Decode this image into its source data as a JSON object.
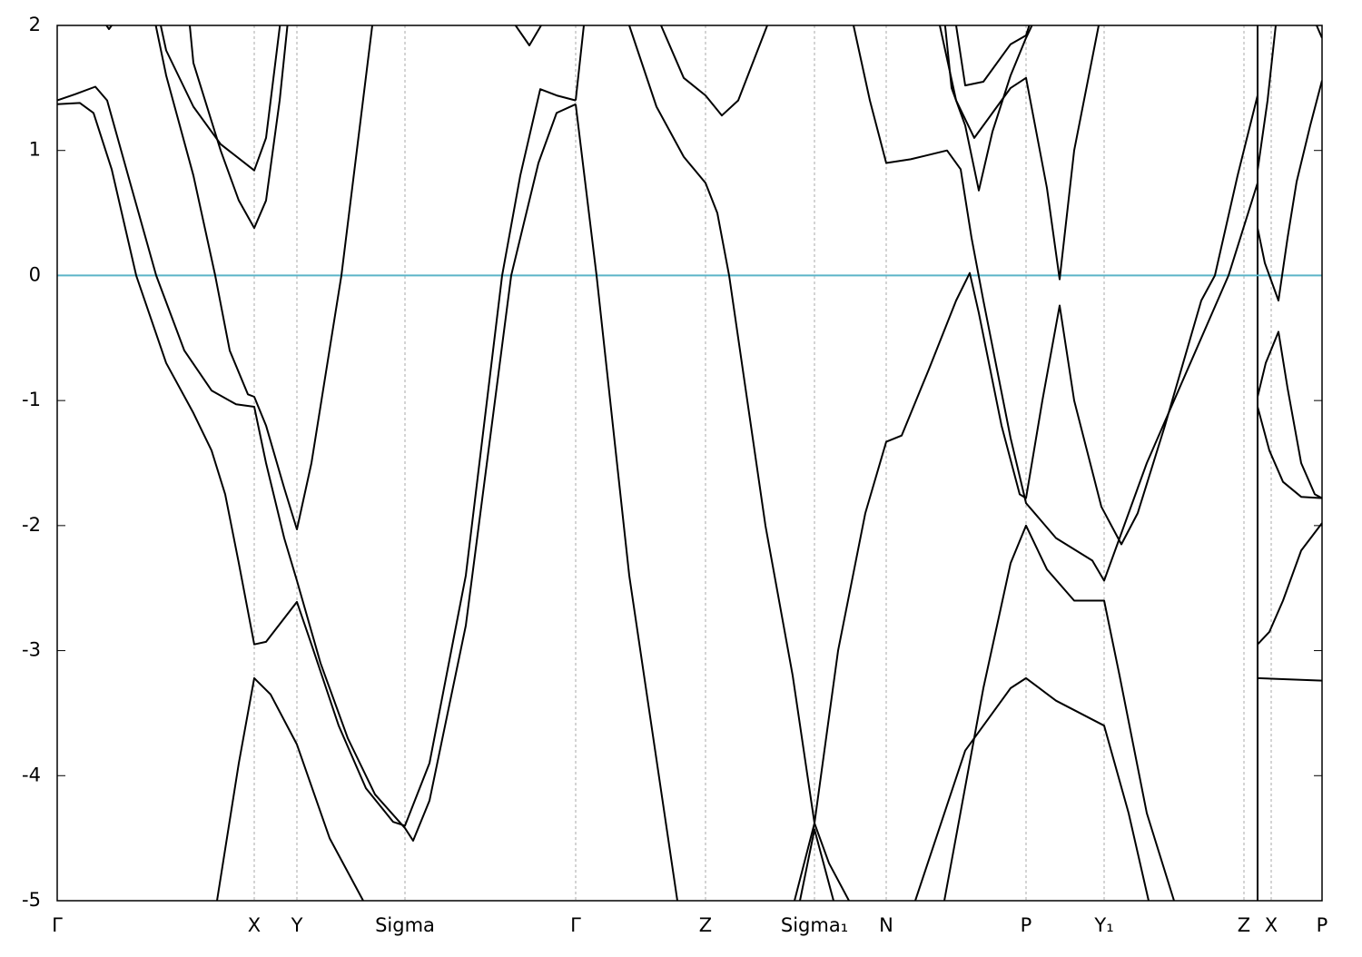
{
  "chart_data": {
    "type": "line",
    "xlim": [
      0,
      13.93
    ],
    "ylim": [
      -5,
      2
    ],
    "yticks": [
      -5,
      -4,
      -3,
      -2,
      -1,
      0,
      1,
      2
    ],
    "xticks": [
      {
        "value": 0,
        "label": "Γ"
      },
      {
        "value": 2.17,
        "label": "X"
      },
      {
        "value": 2.64,
        "label": "Y"
      },
      {
        "value": 3.83,
        "label": "Sigma"
      },
      {
        "value": 5.71,
        "label": "Γ"
      },
      {
        "value": 7.14,
        "label": "Z"
      },
      {
        "value": 8.34,
        "label": "Sigma₁"
      },
      {
        "value": 9.13,
        "label": "N"
      },
      {
        "value": 10.67,
        "label": "P"
      },
      {
        "value": 11.53,
        "label": "Y₁"
      },
      {
        "value": 13.07,
        "label": "Z"
      },
      {
        "value": 13.37,
        "label": "X"
      },
      {
        "value": 13.93,
        "label": "P"
      }
    ],
    "path_break": 13.22,
    "xgrid": true,
    "hlines": [
      {
        "value": 0,
        "color": "#5bb4c8"
      }
    ],
    "series": [
      {
        "color": "#000000",
        "x": [
          0,
          0.25,
          0.4,
          0.6,
          0.87,
          1.2,
          1.5,
          1.7,
          1.85,
          2.0,
          2.17,
          2.3,
          2.64,
          2.8,
          3.1,
          3.4,
          3.7,
          3.83,
          4.1,
          4.5,
          4.9,
          5.1,
          5.32,
          5.5,
          5.71
        ],
        "values": [
          1.37,
          1.38,
          1.3,
          0.85,
          0,
          -0.7,
          -1.1,
          -1.4,
          -1.75,
          -2.3,
          -2.95,
          -2.93,
          -2.61,
          -2.95,
          -3.6,
          -4.1,
          -4.37,
          -4.4,
          -3.9,
          -2.4,
          0,
          0.8,
          1.49,
          1.44,
          1.4
        ]
      },
      {
        "color": "#000000",
        "x": [
          0,
          0.2,
          0.42,
          0.55,
          0.8,
          1.09,
          1.4,
          1.7,
          1.97,
          2.17,
          2.3,
          2.5,
          2.64,
          2.9,
          3.2,
          3.5,
          3.83,
          3.92,
          4.1,
          4.5,
          5.0,
          5.3,
          5.5,
          5.71
        ],
        "values": [
          1.4,
          1.45,
          1.51,
          1.4,
          0.75,
          0,
          -0.6,
          -0.92,
          -1.03,
          -1.05,
          -1.5,
          -2.1,
          -2.44,
          -3.1,
          -3.7,
          -4.15,
          -4.42,
          -4.52,
          -4.2,
          -2.8,
          0,
          0.9,
          1.3,
          1.37
        ]
      },
      {
        "color": "#000000",
        "x": [
          1.0,
          1.2,
          1.5,
          1.74,
          1.9,
          2.1,
          2.17,
          2.3,
          2.5,
          2.64,
          2.8,
          3.13,
          3.47,
          3.55
        ],
        "values": [
          2.3,
          1.6,
          0.8,
          0,
          -0.6,
          -0.95,
          -0.97,
          -1.2,
          -1.7,
          -2.03,
          -1.5,
          0,
          2,
          2.4
        ]
      },
      {
        "color": "#000000",
        "x": [
          1.42,
          1.5,
          1.8,
          2.0,
          2.17,
          2.3,
          2.45,
          2.55
        ],
        "values": [
          2.3,
          1.7,
          1.0,
          0.6,
          0.38,
          0.6,
          1.4,
          2.1
        ]
      },
      {
        "color": "#000000",
        "x": [
          1.05,
          1.2,
          1.5,
          1.8,
          2.17,
          2.3,
          2.47
        ],
        "values": [
          2.3,
          1.8,
          1.35,
          1.05,
          0.84,
          1.1,
          2.1
        ]
      },
      {
        "color": "#000000",
        "x": [
          1.7,
          1.76,
          2.0,
          2.17,
          2.35,
          2.64,
          3.0,
          3.37,
          3.5
        ],
        "values": [
          -5.4,
          -5,
          -3.9,
          -3.22,
          -3.35,
          -3.75,
          -4.5,
          -5,
          -5.2
        ]
      },
      {
        "color": "#000000",
        "x": [
          0.45,
          0.57,
          0.65
        ],
        "values": [
          2.1,
          1.97,
          2.05
        ]
      },
      {
        "color": "#000000",
        "x": [
          5.0,
          5.2,
          5.37
        ],
        "values": [
          2.05,
          1.84,
          2.05
        ]
      },
      {
        "color": "#000000",
        "x": [
          5.71,
          5.94,
          6.3,
          6.83,
          6.9
        ],
        "values": [
          1.37,
          0,
          -2.4,
          -5,
          -5.4
        ]
      },
      {
        "color": "#000000",
        "x": [
          5.71,
          5.8,
          5.85
        ],
        "values": [
          1.4,
          2,
          2.4
        ]
      },
      {
        "color": "#000000",
        "x": [
          6.25,
          6.3,
          6.6,
          6.9,
          7.14,
          7.27,
          7.4,
          7.8,
          8.1,
          8.34,
          8.5,
          8.72,
          8.8
        ],
        "values": [
          2.3,
          2,
          1.35,
          0.95,
          0.74,
          0.5,
          0,
          -2.0,
          -3.2,
          -4.38,
          -4.7,
          -5,
          -5.2
        ]
      },
      {
        "color": "#000000",
        "x": [
          6.6,
          6.65,
          6.9,
          7.14,
          7.32,
          7.5,
          7.82,
          7.9
        ],
        "values": [
          2.2,
          2,
          1.58,
          1.44,
          1.28,
          1.4,
          2,
          2.3
        ]
      },
      {
        "color": "#000000",
        "x": [
          8.0,
          8.12,
          8.34,
          8.6,
          8.9,
          9.13,
          9.3,
          9.6,
          9.9,
          10.05,
          10.15,
          10.4,
          10.6,
          10.67,
          10.85,
          11.04,
          11.2,
          11.5,
          11.72,
          11.9,
          12.2,
          12.6,
          12.75,
          13.0,
          13.22
        ],
        "values": [
          -5.3,
          -5,
          -4.38,
          -3.0,
          -1.9,
          -1.33,
          -1.28,
          -0.75,
          -0.2,
          0.02,
          -0.3,
          -1.2,
          -1.75,
          -1.78,
          -1.0,
          -0.24,
          -1.0,
          -1.85,
          -2.15,
          -1.9,
          -1.2,
          -0.2,
          0,
          0.8,
          1.44
        ]
      },
      {
        "color": "#000000",
        "x": [
          8.0,
          8.18,
          8.34,
          8.55,
          8.7
        ],
        "values": [
          -5.4,
          -5,
          -4.43,
          -5,
          -5.4
        ]
      },
      {
        "color": "#000000",
        "x": [
          8.72,
          8.77,
          8.95,
          9.13,
          9.4,
          9.8,
          9.95,
          10.07,
          10.2,
          10.5,
          10.67,
          11.0,
          11.4,
          11.53,
          12.0,
          12.9,
          13.22
        ],
        "values": [
          2.3,
          2,
          1.4,
          0.9,
          0.93,
          1.0,
          0.85,
          0.3,
          -0.2,
          -1.3,
          -1.82,
          -2.1,
          -2.28,
          -2.44,
          -1.5,
          0,
          0.74
        ]
      },
      {
        "color": "#000000",
        "x": [
          9.75,
          9.85,
          10.0,
          10.15,
          10.3,
          10.5,
          10.67,
          10.8
        ],
        "values": [
          2.2,
          1.5,
          1.2,
          0.68,
          1.15,
          1.6,
          1.9,
          2.1
        ]
      },
      {
        "color": "#000000",
        "x": [
          9.85,
          9.9,
          10.0,
          10.2,
          10.5,
          10.67,
          10.75
        ],
        "values": [
          2.4,
          2,
          1.52,
          1.55,
          1.85,
          1.92,
          2.1
        ]
      },
      {
        "color": "#000000",
        "x": [
          9.6,
          9.72,
          9.9,
          10.1,
          10.3,
          10.5,
          10.67,
          10.9,
          11.04,
          11.2,
          11.47,
          11.5
        ],
        "values": [
          2.3,
          2,
          1.4,
          1.1,
          1.3,
          1.5,
          1.58,
          0.7,
          -0.03,
          1.0,
          2,
          2.3
        ]
      },
      {
        "color": "#000000",
        "x": [
          9.7,
          9.77,
          10.2,
          10.5,
          10.67,
          10.9,
          11.2,
          11.53,
          11.7,
          12.0,
          12.3,
          12.4
        ],
        "values": [
          -5.2,
          -5,
          -3.3,
          -2.3,
          -2.0,
          -2.35,
          -2.6,
          -2.6,
          -3.2,
          -4.3,
          -5,
          -5.3
        ]
      },
      {
        "color": "#000000",
        "x": [
          9.4,
          9.45,
          10.0,
          10.5,
          10.67,
          11.0,
          11.53,
          11.8,
          12.02,
          12.1
        ],
        "values": [
          -5.3,
          -5,
          -3.8,
          -3.3,
          -3.22,
          -3.4,
          -3.6,
          -4.3,
          -5,
          -5.3
        ]
      },
      {
        "color": "#000000",
        "x": [
          13.22,
          13.33,
          13.42,
          13.45
        ],
        "values": [
          0.84,
          1.4,
          2,
          2.2
        ]
      },
      {
        "color": "#000000",
        "x": [
          13.22,
          13.3,
          13.45,
          13.55,
          13.65,
          13.8,
          13.93
        ],
        "values": [
          0.38,
          0.1,
          -0.2,
          0.3,
          0.75,
          1.2,
          1.56
        ]
      },
      {
        "color": "#000000",
        "x": [
          13.85,
          13.87,
          13.93
        ],
        "values": [
          2.1,
          2,
          1.9
        ]
      },
      {
        "color": "#000000",
        "x": [
          13.22,
          13.31,
          13.45,
          13.55,
          13.7,
          13.85,
          13.93
        ],
        "values": [
          -0.97,
          -0.7,
          -0.45,
          -0.9,
          -1.5,
          -1.75,
          -1.78
        ]
      },
      {
        "color": "#000000",
        "x": [
          13.22,
          13.35,
          13.5,
          13.7,
          13.93
        ],
        "values": [
          -1.05,
          -1.4,
          -1.65,
          -1.77,
          -1.78
        ]
      },
      {
        "color": "#000000",
        "x": [
          13.22,
          13.35,
          13.5,
          13.7,
          13.93
        ],
        "values": [
          -2.95,
          -2.85,
          -2.6,
          -2.2,
          -1.98
        ]
      },
      {
        "color": "#000000",
        "x": [
          13.22,
          13.93
        ],
        "values": [
          -3.22,
          -3.24
        ]
      }
    ]
  }
}
